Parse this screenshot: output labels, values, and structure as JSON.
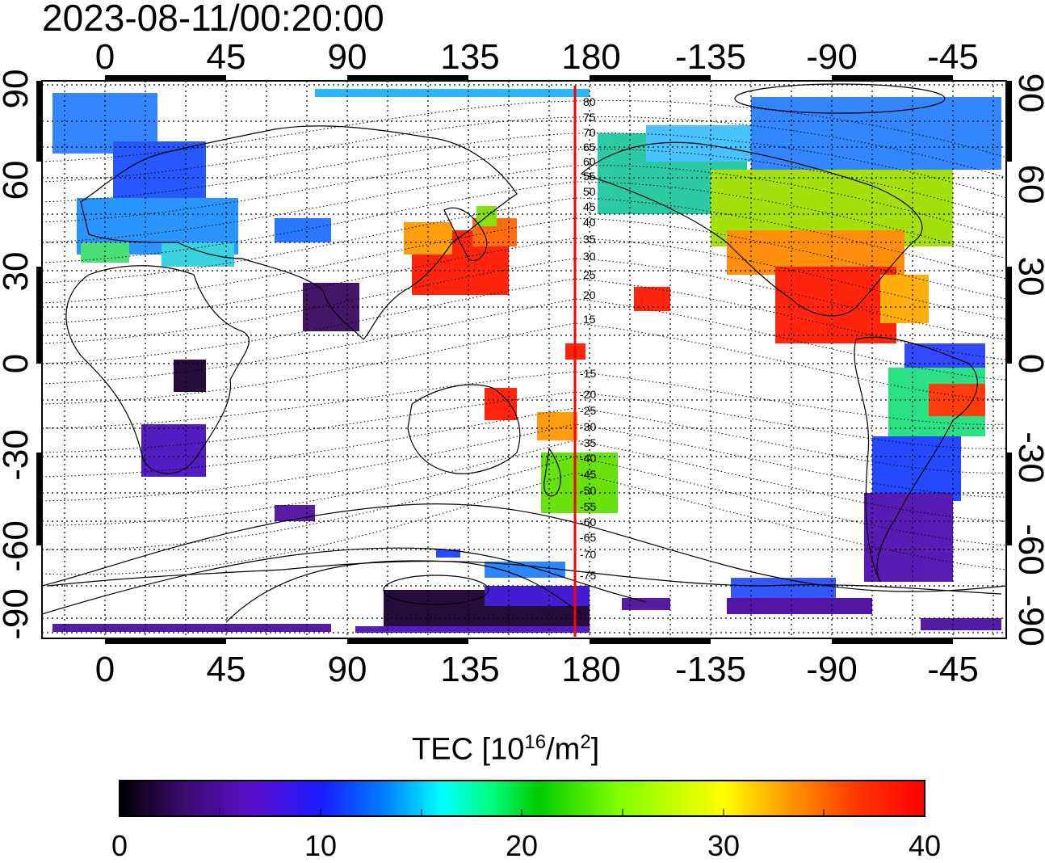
{
  "title": "2023-08-11/00:20:00",
  "map": {
    "projection": "equirectangular",
    "lon_ticks": [
      "0",
      "45",
      "90",
      "135",
      "180",
      "-135",
      "-90",
      "-45"
    ],
    "lat_ticks": [
      "90",
      "60",
      "30",
      "0",
      "-30",
      "-60",
      "-90"
    ],
    "magnetic_latitudes_north": [
      "80",
      "75",
      "70",
      "65",
      "60",
      "55",
      "50",
      "45",
      "40",
      "35",
      "30",
      "25",
      "20",
      "15"
    ],
    "magnetic_latitudes_south": [
      "-15",
      "-20",
      "-25",
      "-30",
      "-35",
      "-40",
      "-45",
      "-50",
      "-55",
      "-60",
      "-65",
      "-70",
      "-75"
    ],
    "terminator_color": "#ff0000"
  },
  "colorbar": {
    "title_prefix": "TEC  [10",
    "title_sup1": "16",
    "title_mid": "/m",
    "title_sup2": "2",
    "title_suffix": "]",
    "min": 0,
    "max": 40,
    "ticks": [
      "0",
      "10",
      "20",
      "30",
      "40"
    ],
    "colors": [
      "#000000",
      "#3b0a6e",
      "#5a0fd0",
      "#1a1aff",
      "#0080ff",
      "#00ffff",
      "#00ff80",
      "#00cc00",
      "#80ff00",
      "#ffff00",
      "#ff9900",
      "#ff3300",
      "#ff0000"
    ]
  }
}
